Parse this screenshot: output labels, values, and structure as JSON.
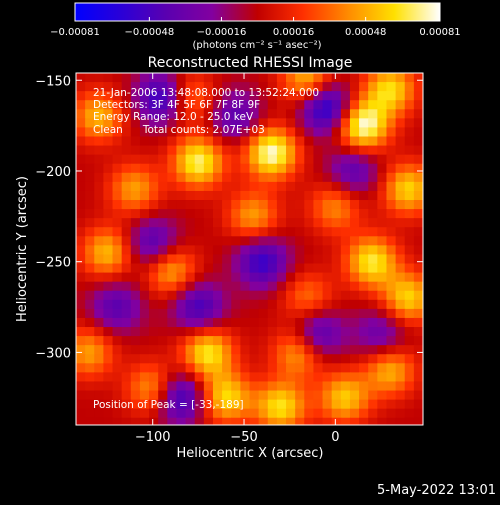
{
  "chart_data": {
    "type": "heatmap",
    "title": "Reconstructed RHESSI Image",
    "xlabel": "Heliocentric X (arcsec)",
    "ylabel": "Heliocentric Y (arcsec)",
    "xlim": [
      -142,
      48
    ],
    "ylim": [
      -340,
      -146
    ],
    "x_ticks": [
      -100,
      -50,
      0
    ],
    "x_tick_labels": [
      "−100",
      "−50",
      "0"
    ],
    "y_ticks": [
      -150,
      -200,
      -250,
      -300
    ],
    "y_tick_labels": [
      "−150",
      "−200",
      "−250",
      "−300"
    ],
    "colorbar": {
      "min": -0.00081,
      "max": 0.00081,
      "ticks": [
        -0.00081,
        -0.00048,
        -0.00016,
        0.00016,
        0.00048,
        0.00081
      ],
      "tick_labels": [
        "−0.00081",
        "−0.00048",
        "−0.00016",
        "0.00016",
        "0.00048",
        "0.00081"
      ],
      "unit_label": "(photons cm⁻² s⁻¹ asec⁻²)",
      "colors": [
        "#0000ff",
        "#2a00d8",
        "#5a00b0",
        "#8200a0",
        "#c00000",
        "#ff3000",
        "#ff8c00",
        "#ffe000",
        "#ffffff"
      ]
    },
    "grid": false,
    "annotations": [
      "21-Jan-2006 13:48:08.000 to 13:52:24.000",
      "Detectors: 3F 4F 5F 6F 7F 8F 9F",
      "Energy Range: 12.0 - 25.0 keV",
      "Clean      Total counts: 2.07E+03"
    ],
    "peak_label": "Position of Peak = [-33,-189]",
    "sources": [
      {
        "x": 15,
        "y": -175,
        "intensity": 0.00081
      },
      {
        "x": -35,
        "y": -190,
        "intensity": 0.00078
      },
      {
        "x": -75,
        "y": -195,
        "intensity": 0.0007
      },
      {
        "x": -15,
        "y": -150,
        "intensity": 0.00055
      },
      {
        "x": 30,
        "y": -155,
        "intensity": 0.0006
      },
      {
        "x": 40,
        "y": -210,
        "intensity": 0.00058
      },
      {
        "x": -130,
        "y": -170,
        "intensity": 0.0005
      },
      {
        "x": -110,
        "y": -210,
        "intensity": 0.00045
      },
      {
        "x": -125,
        "y": -245,
        "intensity": 0.00052
      },
      {
        "x": -90,
        "y": -255,
        "intensity": 0.0005
      },
      {
        "x": -135,
        "y": -300,
        "intensity": 0.00045
      },
      {
        "x": -70,
        "y": -300,
        "intensity": 0.00065
      },
      {
        "x": -60,
        "y": -325,
        "intensity": 0.0006
      },
      {
        "x": -30,
        "y": -330,
        "intensity": 0.00062
      },
      {
        "x": -20,
        "y": -300,
        "intensity": 0.0005
      },
      {
        "x": 5,
        "y": -325,
        "intensity": 0.00055
      },
      {
        "x": 20,
        "y": -250,
        "intensity": 0.00065
      },
      {
        "x": 40,
        "y": -270,
        "intensity": 0.00058
      },
      {
        "x": 30,
        "y": -310,
        "intensity": 0.0005
      },
      {
        "x": -45,
        "y": -225,
        "intensity": 0.00045
      },
      {
        "x": -100,
        "y": -320,
        "intensity": 0.00048
      },
      {
        "x": 0,
        "y": -220,
        "intensity": 0.0004
      },
      {
        "x": -15,
        "y": -270,
        "intensity": 0.00035
      },
      {
        "x": -80,
        "y": -160,
        "intensity": 0.0004
      },
      {
        "x": -95,
        "y": -160,
        "intensity": -0.0006
      },
      {
        "x": -5,
        "y": -165,
        "intensity": -0.0007
      },
      {
        "x": -40,
        "y": -250,
        "intensity": -0.00055
      },
      {
        "x": -100,
        "y": -240,
        "intensity": -0.00045
      },
      {
        "x": -75,
        "y": -275,
        "intensity": -0.0005
      },
      {
        "x": -10,
        "y": -290,
        "intensity": -0.0005
      },
      {
        "x": -85,
        "y": -325,
        "intensity": -0.0006
      },
      {
        "x": -120,
        "y": -275,
        "intensity": -0.0004
      },
      {
        "x": 10,
        "y": -200,
        "intensity": -0.0004
      },
      {
        "x": -55,
        "y": -170,
        "intensity": -0.0004
      },
      {
        "x": 25,
        "y": -290,
        "intensity": -0.00035
      }
    ]
  },
  "footer": {
    "timestamp": "5-May-2022 13:01"
  }
}
